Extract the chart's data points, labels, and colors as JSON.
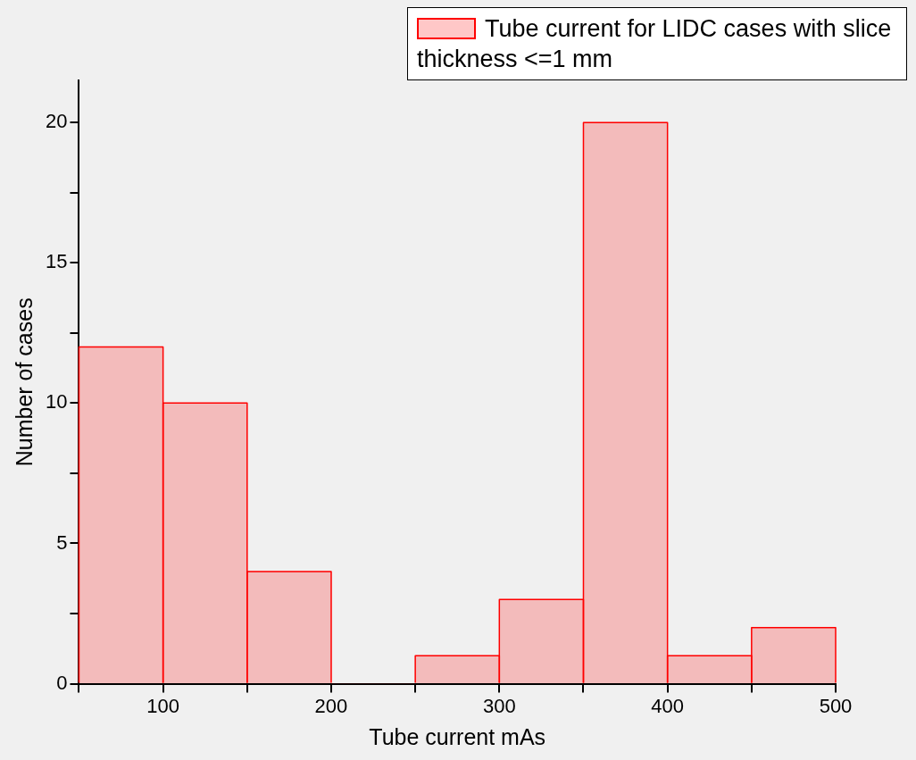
{
  "chart_data": {
    "type": "histogram",
    "xlabel": "Tube current mAs",
    "ylabel": "Number of cases",
    "bins": [
      50,
      100,
      150,
      200,
      250,
      300,
      350,
      400,
      450,
      500
    ],
    "series": [
      {
        "name": "Tube current for LIDC cases with slice thickness <=1 mm",
        "color": "#ff0000",
        "values": [
          12,
          10,
          4,
          0,
          1,
          3,
          20,
          1,
          2
        ]
      }
    ],
    "xlim": [
      50,
      500
    ],
    "xticks": [
      {
        "value": 50,
        "label": null
      },
      100,
      {
        "value": 150,
        "label": null
      },
      200,
      {
        "value": 250,
        "label": null
      },
      300,
      {
        "value": 350,
        "label": null
      },
      400,
      {
        "value": 450,
        "label": null
      },
      500
    ],
    "ylim": [
      0,
      21.5
    ],
    "yticks": [
      0,
      {
        "value": 2.5,
        "label": null
      },
      5,
      {
        "value": 7.5,
        "label": null
      },
      10,
      {
        "value": 12.5,
        "label": null
      },
      15,
      {
        "value": 17.5,
        "label": null
      },
      20
    ],
    "grid": false,
    "legend": "top right"
  }
}
